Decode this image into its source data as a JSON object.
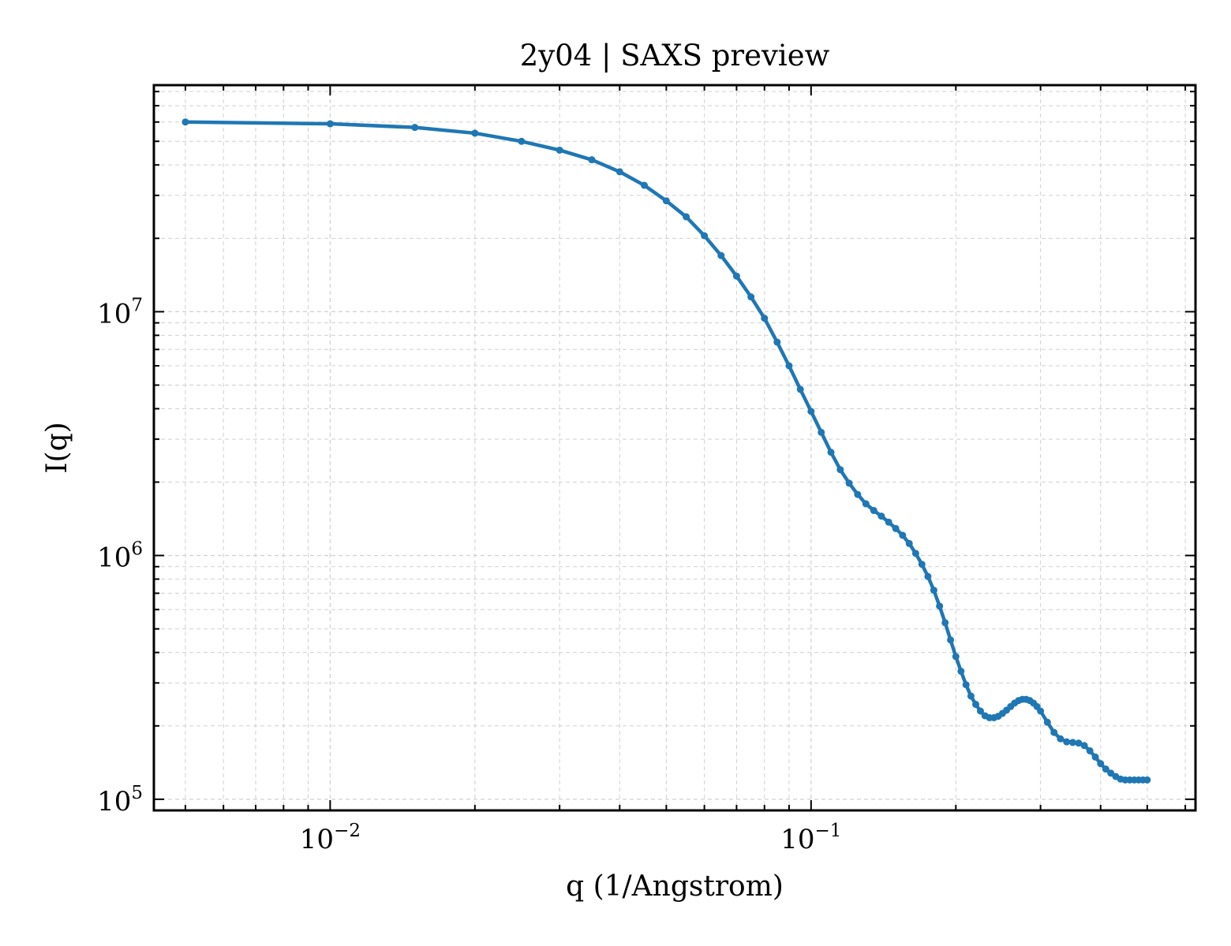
{
  "chart_data": {
    "type": "line",
    "title": "2y04 | SAXS preview",
    "xlabel": "q (1/Angstrom)",
    "ylabel": "I(q)",
    "xscale": "log",
    "yscale": "log",
    "xlim": [
      0.0043,
      0.63
    ],
    "ylim": [
      90000,
      85000000
    ],
    "grid": true,
    "legend": "none",
    "marker": "dot",
    "x_tick_labels": [
      {
        "base": "10",
        "exp": "−2",
        "value": 0.01
      },
      {
        "base": "10",
        "exp": "−1",
        "value": 0.1
      }
    ],
    "y_tick_labels": [
      {
        "base": "10",
        "exp": "5",
        "value": 100000
      },
      {
        "base": "10",
        "exp": "6",
        "value": 1000000
      },
      {
        "base": "10",
        "exp": "7",
        "value": 10000000
      }
    ],
    "series": [
      {
        "color": "#1f77b4",
        "x": [
          0.005,
          0.01,
          0.015,
          0.02,
          0.025,
          0.03,
          0.035,
          0.04,
          0.045,
          0.05,
          0.055,
          0.06,
          0.065,
          0.07,
          0.075,
          0.08,
          0.085,
          0.09,
          0.095,
          0.1,
          0.105,
          0.11,
          0.115,
          0.12,
          0.125,
          0.13,
          0.135,
          0.14,
          0.145,
          0.15,
          0.155,
          0.16,
          0.165,
          0.17,
          0.175,
          0.18,
          0.185,
          0.19,
          0.195,
          0.2,
          0.205,
          0.21,
          0.215,
          0.22,
          0.225,
          0.23,
          0.235,
          0.24,
          0.245,
          0.25,
          0.255,
          0.26,
          0.265,
          0.27,
          0.275,
          0.28,
          0.285,
          0.29,
          0.295,
          0.3,
          0.31,
          0.32,
          0.33,
          0.34,
          0.35,
          0.36,
          0.37,
          0.38,
          0.39,
          0.4,
          0.41,
          0.42,
          0.43,
          0.44,
          0.45,
          0.46,
          0.47,
          0.48,
          0.49,
          0.5
        ],
        "y": [
          60000000,
          59000000,
          57000000,
          54000000,
          50000000,
          46000000,
          42000000,
          37500000,
          33000000,
          28500000,
          24500000,
          20500000,
          17000000,
          14000000,
          11500000,
          9400000,
          7500000,
          6000000,
          4800000,
          3900000,
          3200000,
          2650000,
          2250000,
          1980000,
          1780000,
          1630000,
          1530000,
          1450000,
          1370000,
          1290000,
          1210000,
          1120000,
          1020000,
          920000,
          820000,
          720000,
          620000,
          530000,
          450000,
          385000,
          335000,
          295000,
          265000,
          245000,
          230000,
          220000,
          216000,
          216000,
          219000,
          225000,
          232000,
          240000,
          248000,
          254000,
          257000,
          257000,
          254000,
          248000,
          240000,
          230000,
          207000,
          188000,
          177000,
          172000,
          171000,
          170000,
          166000,
          158000,
          149000,
          140000,
          133000,
          128000,
          124000,
          121000,
          120000,
          120000,
          120000,
          120000,
          120000,
          120000
        ]
      }
    ]
  }
}
